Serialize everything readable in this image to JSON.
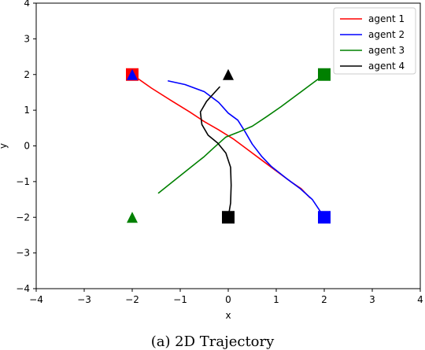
{
  "chart_data": {
    "type": "line",
    "title": "",
    "xlabel": "x",
    "ylabel": "y",
    "xlim": [
      -4,
      4
    ],
    "ylim": [
      -4,
      4
    ],
    "x_ticks": [
      -4,
      -3,
      -2,
      -1,
      0,
      1,
      2,
      3,
      4
    ],
    "y_ticks": [
      -4,
      -3,
      -2,
      -1,
      0,
      1,
      2,
      3,
      4
    ],
    "x_tick_labels": [
      "−4",
      "−3",
      "−2",
      "−1",
      "0",
      "1",
      "2",
      "3",
      "4"
    ],
    "y_tick_labels": [
      "−4",
      "−3",
      "−2",
      "−1",
      "0",
      "1",
      "2",
      "3",
      "4"
    ],
    "grid": false,
    "legend": "top-right",
    "series": [
      {
        "name": "agent 1",
        "color": "#ff0000",
        "points": [
          [
            -2.0,
            2.0
          ],
          [
            -1.6,
            1.62
          ],
          [
            -1.2,
            1.28
          ],
          [
            -0.8,
            0.95
          ],
          [
            -0.5,
            0.68
          ],
          [
            -0.2,
            0.45
          ],
          [
            0.1,
            0.2
          ],
          [
            0.4,
            -0.1
          ],
          [
            0.7,
            -0.4
          ],
          [
            1.0,
            -0.7
          ],
          [
            1.3,
            -1.0
          ],
          [
            1.52,
            -1.2
          ],
          [
            1.7,
            -1.45
          ]
        ],
        "start_marker": "square",
        "start": [
          -2.0,
          2.0
        ],
        "goal_marker": "triangle",
        "goal": null
      },
      {
        "name": "agent 2",
        "color": "#0000ff",
        "points": [
          [
            -1.25,
            1.82
          ],
          [
            -0.9,
            1.72
          ],
          [
            -0.5,
            1.52
          ],
          [
            -0.2,
            1.22
          ],
          [
            0.0,
            0.92
          ],
          [
            0.2,
            0.72
          ],
          [
            0.35,
            0.4
          ],
          [
            0.5,
            0.05
          ],
          [
            0.7,
            -0.3
          ],
          [
            0.9,
            -0.58
          ],
          [
            1.2,
            -0.9
          ],
          [
            1.5,
            -1.2
          ],
          [
            1.75,
            -1.5
          ],
          [
            2.0,
            -2.0
          ]
        ],
        "start_marker": "square",
        "start": [
          2.0,
          -2.0
        ],
        "goal_marker": "triangle",
        "goal": [
          -2.0,
          2.0
        ]
      },
      {
        "name": "agent 3",
        "color": "#008000",
        "points": [
          [
            -1.45,
            -1.32
          ],
          [
            -1.2,
            -1.05
          ],
          [
            -0.8,
            -0.62
          ],
          [
            -0.5,
            -0.3
          ],
          [
            -0.3,
            -0.05
          ],
          [
            -0.05,
            0.25
          ],
          [
            0.2,
            0.38
          ],
          [
            0.5,
            0.55
          ],
          [
            0.8,
            0.82
          ],
          [
            1.1,
            1.1
          ],
          [
            1.4,
            1.4
          ],
          [
            1.7,
            1.7
          ],
          [
            2.0,
            2.0
          ]
        ],
        "start_marker": "square",
        "start": [
          2.0,
          2.0
        ],
        "goal_marker": "triangle",
        "goal": [
          -2.0,
          -2.0
        ]
      },
      {
        "name": "agent 4",
        "color": "#000000",
        "points": [
          [
            -0.18,
            1.65
          ],
          [
            -0.45,
            1.25
          ],
          [
            -0.58,
            0.95
          ],
          [
            -0.55,
            0.6
          ],
          [
            -0.42,
            0.3
          ],
          [
            -0.22,
            0.08
          ],
          [
            -0.05,
            -0.2
          ],
          [
            0.05,
            -0.6
          ],
          [
            0.06,
            -1.1
          ],
          [
            0.05,
            -1.6
          ],
          [
            0.0,
            -2.0
          ]
        ],
        "start_marker": "square",
        "start": [
          0.0,
          -2.0
        ],
        "goal_marker": "triangle",
        "goal": [
          0.0,
          2.0
        ]
      }
    ]
  },
  "caption": "(a) 2D Trajectory"
}
